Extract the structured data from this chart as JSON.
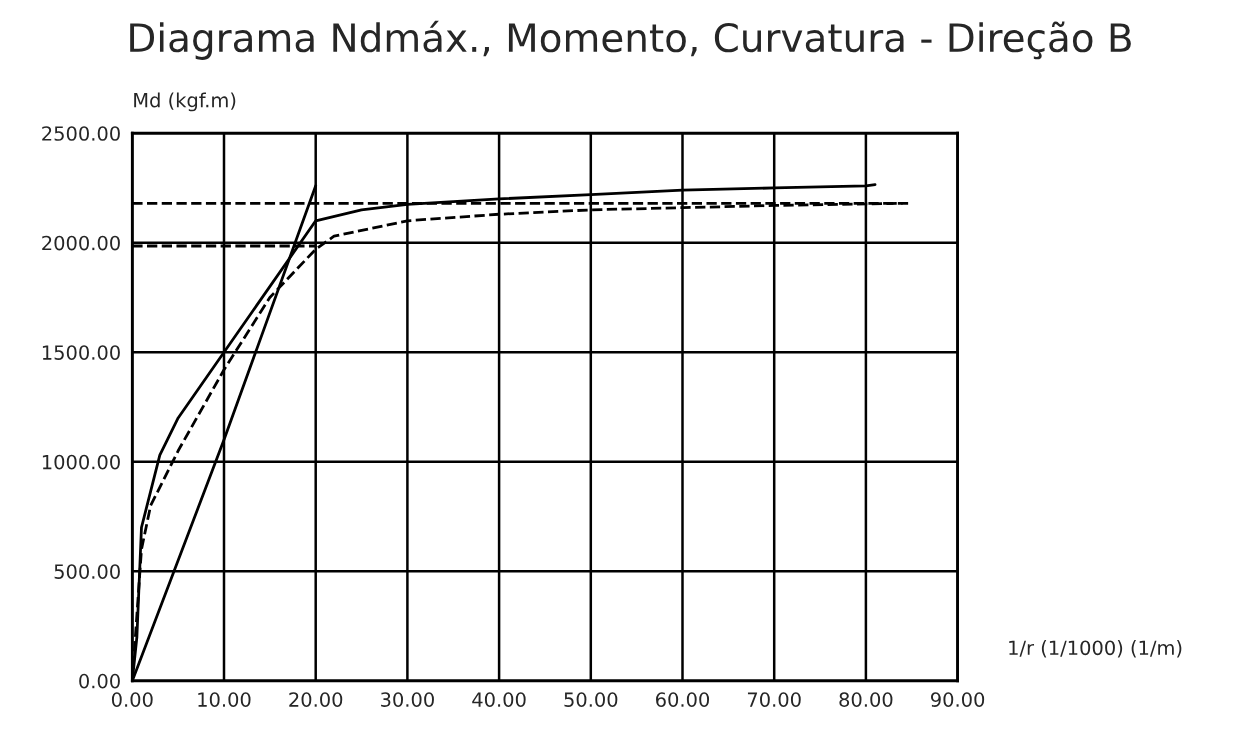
{
  "chart_data": {
    "type": "line",
    "title": "Diagrama Ndmáx., Momento, Curvatura - Direção B",
    "xlabel": "1/r (1/1000) (1/m)",
    "ylabel": "Md (kgf.m)",
    "xlim": [
      0,
      90
    ],
    "ylim": [
      0,
      2500
    ],
    "xticks": [
      {
        "value": 0,
        "label": "0.00"
      },
      {
        "value": 10,
        "label": "10.00"
      },
      {
        "value": 20,
        "label": "20.00"
      },
      {
        "value": 30,
        "label": "30.00"
      },
      {
        "value": 40,
        "label": "40.00"
      },
      {
        "value": 50,
        "label": "50.00"
      },
      {
        "value": 60,
        "label": "60.00"
      },
      {
        "value": 70,
        "label": "70.00"
      },
      {
        "value": 80,
        "label": "80.00"
      },
      {
        "value": 90,
        "label": "90.00"
      }
    ],
    "yticks": [
      {
        "value": 0,
        "label": "0.00"
      },
      {
        "value": 500,
        "label": "500.00"
      },
      {
        "value": 1000,
        "label": "1000.00"
      },
      {
        "value": 1500,
        "label": "1500.00"
      },
      {
        "value": 2000,
        "label": "2000.00"
      },
      {
        "value": 2500,
        "label": "2500.00"
      }
    ],
    "grid": true,
    "legend": false,
    "marker": "none",
    "series": [
      {
        "color": "#000000",
        "line_style": "solid",
        "x": [
          0,
          0.5,
          1,
          3,
          5,
          10,
          20,
          25,
          30,
          40,
          50,
          60,
          70,
          80,
          81
        ],
        "values": [
          0,
          200,
          700,
          1030,
          1200,
          1500,
          2100,
          2150,
          2175,
          2200,
          2220,
          2240,
          2250,
          2260,
          2265
        ]
      },
      {
        "color": "#000000",
        "line_style": "dashed",
        "x": [
          0,
          1,
          2,
          5,
          10,
          15,
          20,
          22,
          30,
          40,
          50,
          60,
          70,
          84
        ],
        "values": [
          0,
          600,
          800,
          1050,
          1420,
          1750,
          1970,
          2030,
          2100,
          2130,
          2150,
          2160,
          2170,
          2180
        ]
      },
      {
        "color": "#000000",
        "line_style": "solid",
        "x": [
          0,
          10,
          20
        ],
        "values": [
          0,
          1100,
          2260
        ]
      },
      {
        "color": "#000000",
        "line_style": "dashed",
        "x": [
          0,
          85
        ],
        "values": [
          2180,
          2180
        ]
      },
      {
        "color": "#000000",
        "line_style": "dashed",
        "x": [
          0,
          20
        ],
        "values": [
          1985,
          1985
        ]
      }
    ]
  }
}
